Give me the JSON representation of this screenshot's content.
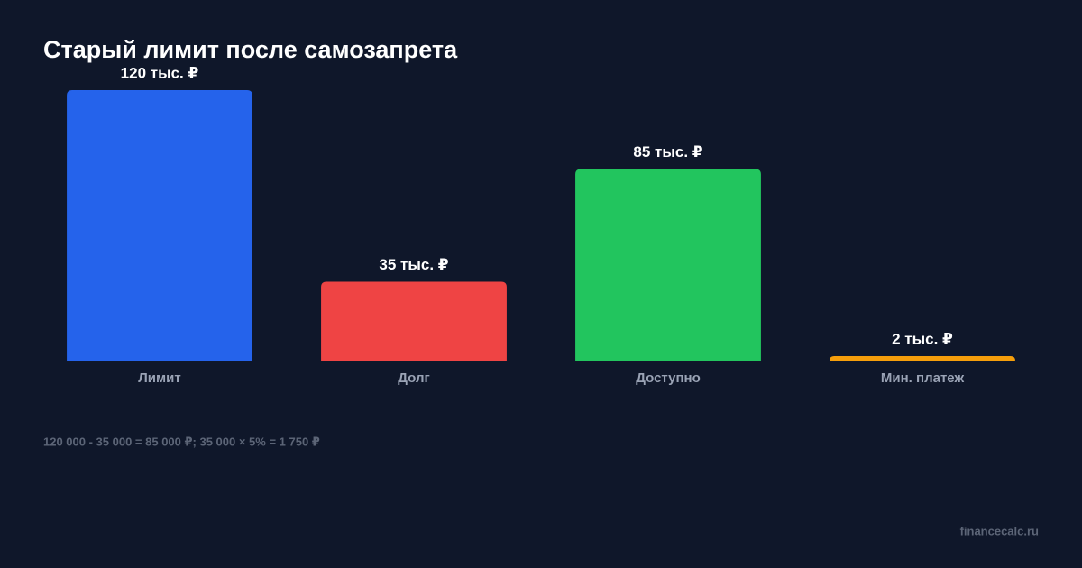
{
  "chart_data": {
    "type": "bar",
    "title": "Старый лимит после самозапрета",
    "categories": [
      "Лимит",
      "Долг",
      "Доступно",
      "Мин. платеж"
    ],
    "values": [
      120,
      35,
      85,
      2
    ],
    "value_labels": [
      "120 тыс. ₽",
      "35 тыс. ₽",
      "85 тыс. ₽",
      "2 тыс. ₽"
    ],
    "colors": [
      "#2563eb",
      "#ef4444",
      "#22c55e",
      "#f59e0b"
    ],
    "note": "120 000 - 35 000 = 85 000 ₽; 35 000 × 5% = 1 750 ₽",
    "source": "financecalc.ru"
  }
}
